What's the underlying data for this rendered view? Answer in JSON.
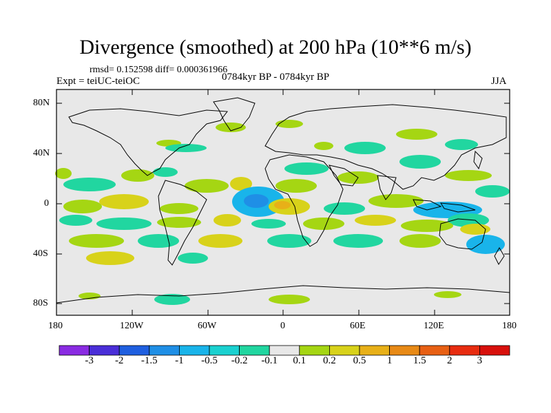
{
  "title": "Divergence (smoothed) at 200 hPa (10**6 m/s)",
  "stats_line": "rmsd= 0.152598 diff= 0.000361966",
  "experiment": "Expt = teiUC-teiOC",
  "period": "0784kyr BP - 0784kyr BP",
  "season": "JJA",
  "lat_ticks": [
    "80N",
    "40N",
    "0",
    "40S",
    "80S"
  ],
  "lon_ticks": [
    "180",
    "120W",
    "60W",
    "0",
    "60E",
    "120E",
    "180"
  ],
  "colorbar": {
    "labels": [
      "-3",
      "-2",
      "-1.5",
      "-1",
      "-0.5",
      "-0.2",
      "-0.1",
      "0.1",
      "0.2",
      "0.5",
      "1",
      "1.5",
      "2",
      "3"
    ],
    "colors": [
      "#8a2be2",
      "#4a2ed8",
      "#1f5fe0",
      "#1f8fe6",
      "#19b4ea",
      "#1ad1d0",
      "#21d6a0",
      "#e8e8e8",
      "#a5d613",
      "#d8d21a",
      "#e8b018",
      "#e88a16",
      "#e86014",
      "#e82c10",
      "#d8100c"
    ]
  },
  "colors": {
    "background": "#e8e8e8",
    "coast": "#000000"
  }
}
